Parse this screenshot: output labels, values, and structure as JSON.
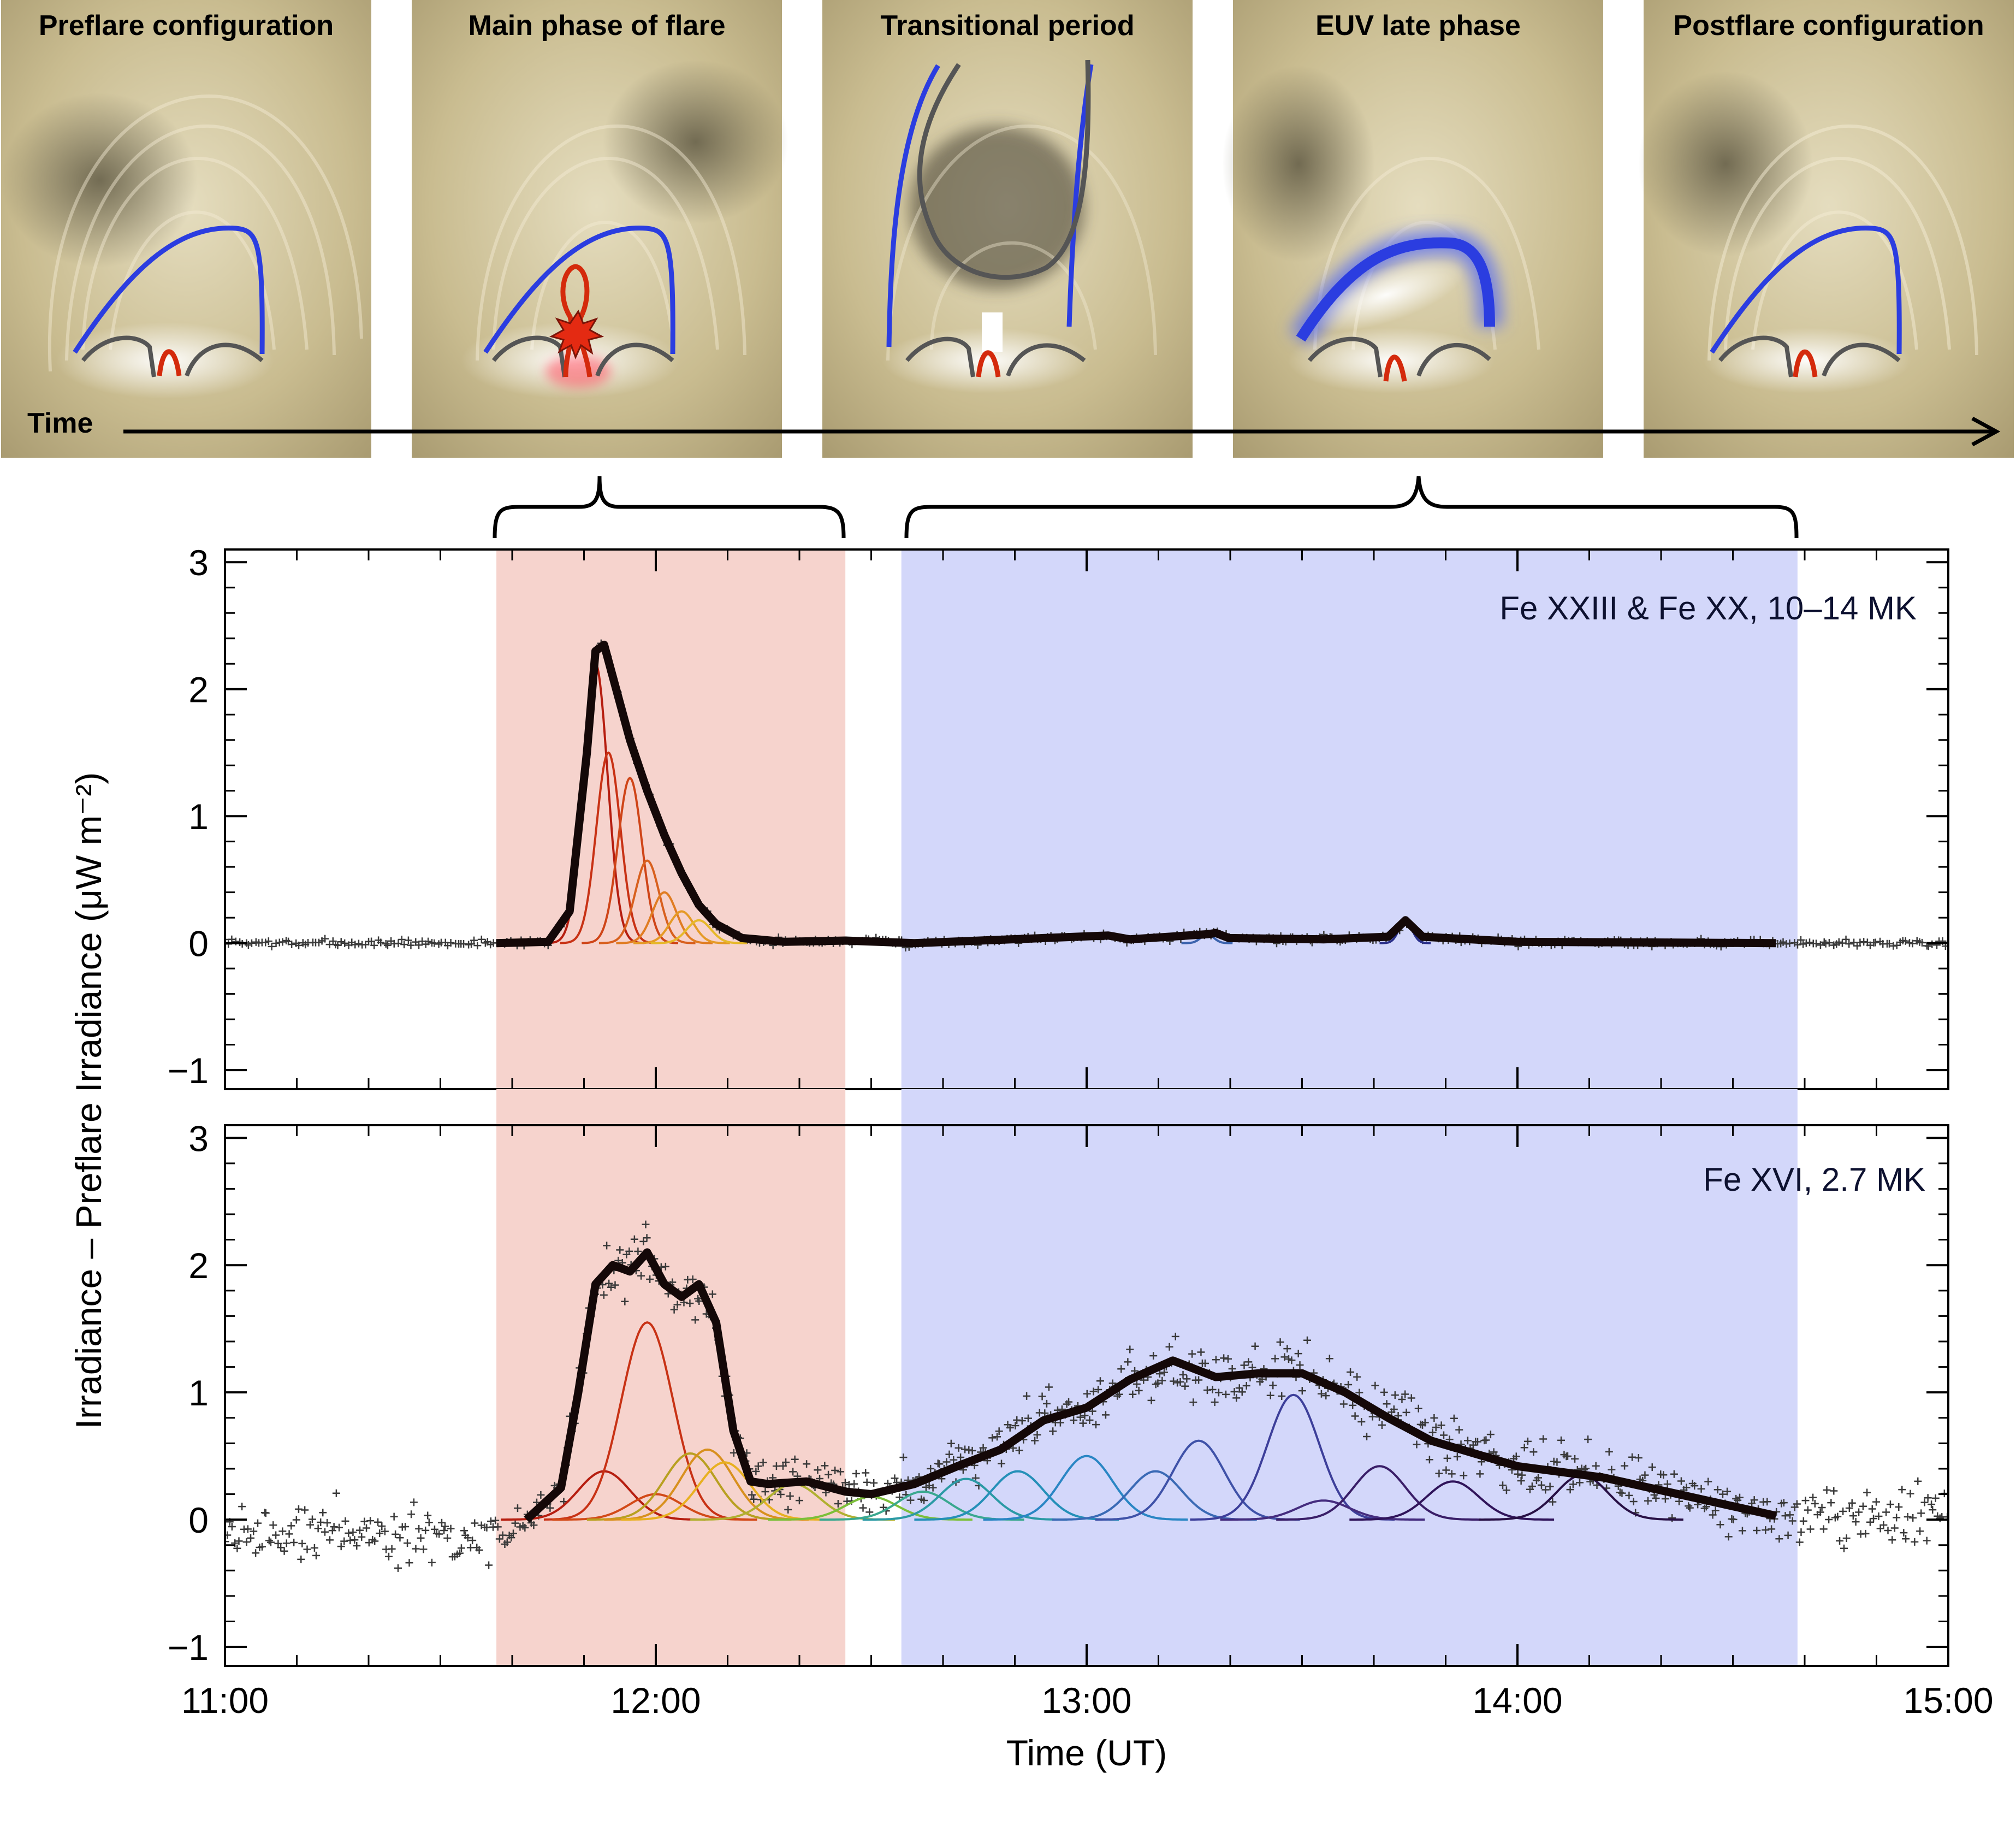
{
  "panels": [
    {
      "title": "Preflare configuration"
    },
    {
      "title": "Main phase of flare"
    },
    {
      "title": "Transitional period"
    },
    {
      "title": "EUV late phase"
    },
    {
      "title": "Postflare configuration"
    }
  ],
  "timeline_label": "Time",
  "colors": {
    "main_phase_shade": "#f6d3cd",
    "late_phase_shade": "#d3d7fa",
    "field_blue": "#2b3de0",
    "loop_red": "#d42a0c",
    "loop_gray": "#555555",
    "data_black": "#140808"
  },
  "chart_data": [
    {
      "type": "line",
      "ion_label": "Fe XXIII & Fe XX, 10–14 MK",
      "xlim": [
        11.0,
        15.0
      ],
      "ylim": [
        -1.15,
        3.1
      ],
      "yticks": [
        -1,
        0,
        1,
        2,
        3
      ],
      "shaded_regions": [
        {
          "phase": "main",
          "x_start": 11.63,
          "x_end": 12.44
        },
        {
          "phase": "late",
          "x_start": 12.57,
          "x_end": 14.65
        }
      ],
      "fit_x": [
        11.63,
        11.75,
        11.8,
        11.84,
        11.86,
        11.88,
        11.9,
        11.94,
        11.98,
        12.02,
        12.06,
        12.1,
        12.14,
        12.2,
        12.3,
        12.44,
        12.6,
        12.9,
        13.05,
        13.1,
        13.28,
        13.3,
        13.33,
        13.55,
        13.7,
        13.74,
        13.78,
        14.0,
        14.6
      ],
      "fit_y": [
        0.0,
        0.01,
        0.25,
        1.5,
        2.3,
        2.35,
        2.1,
        1.6,
        1.2,
        0.85,
        0.55,
        0.3,
        0.15,
        0.04,
        0.01,
        0.02,
        0.0,
        0.04,
        0.06,
        0.03,
        0.07,
        0.08,
        0.04,
        0.03,
        0.05,
        0.18,
        0.05,
        0.01,
        0.0
      ],
      "component_peaks": [
        {
          "peak_time": 11.86,
          "amplitude": 2.2,
          "color": "#b61e10"
        },
        {
          "peak_time": 11.89,
          "amplitude": 1.5,
          "color": "#c83215"
        },
        {
          "peak_time": 11.94,
          "amplitude": 1.3,
          "color": "#cf4518"
        },
        {
          "peak_time": 11.98,
          "amplitude": 0.65,
          "color": "#d8601e"
        },
        {
          "peak_time": 12.02,
          "amplitude": 0.4,
          "color": "#e07c22"
        },
        {
          "peak_time": 12.06,
          "amplitude": 0.25,
          "color": "#e59a26"
        },
        {
          "peak_time": 12.1,
          "amplitude": 0.18,
          "color": "#e6b82a"
        },
        {
          "peak_time": 12.4,
          "amplitude": 0.03,
          "color": "#a8c238"
        },
        {
          "peak_time": 13.28,
          "amplitude": 0.07,
          "color": "#3b63ad"
        },
        {
          "peak_time": 13.74,
          "amplitude": 0.18,
          "color": "#2a2f8a"
        }
      ]
    },
    {
      "type": "line",
      "ion_label": "Fe XVI, 2.7 MK",
      "xlim": [
        11.0,
        15.0
      ],
      "ylim": [
        -1.15,
        3.1
      ],
      "yticks": [
        -1,
        0,
        1,
        2,
        3
      ],
      "xticks": [
        11,
        12,
        13,
        14,
        15
      ],
      "xtick_labels": [
        "11:00",
        "12:00",
        "13:00",
        "14:00",
        "15:00"
      ],
      "xlabel": "Time (UT)",
      "fit_x": [
        11.7,
        11.78,
        11.82,
        11.86,
        11.9,
        11.94,
        11.98,
        12.02,
        12.06,
        12.1,
        12.14,
        12.18,
        12.22,
        12.26,
        12.35,
        12.44,
        12.5,
        12.6,
        12.7,
        12.8,
        12.9,
        13.0,
        13.1,
        13.2,
        13.3,
        13.4,
        13.5,
        13.6,
        13.7,
        13.8,
        14.0,
        14.2,
        14.4,
        14.6
      ],
      "fit_y": [
        0.0,
        0.25,
        1.0,
        1.85,
        2.0,
        1.95,
        2.1,
        1.85,
        1.75,
        1.85,
        1.55,
        0.7,
        0.3,
        0.28,
        0.3,
        0.22,
        0.2,
        0.28,
        0.42,
        0.55,
        0.78,
        0.88,
        1.1,
        1.25,
        1.12,
        1.15,
        1.15,
        1.0,
        0.8,
        0.62,
        0.42,
        0.33,
        0.18,
        0.03
      ],
      "component_peaks": [
        {
          "peak_time": 11.88,
          "amplitude": 0.38,
          "color": "#b61e10"
        },
        {
          "peak_time": 11.98,
          "amplitude": 1.55,
          "color": "#c83215"
        },
        {
          "peak_time": 12.0,
          "amplitude": 0.2,
          "color": "#d24a18"
        },
        {
          "peak_time": 12.08,
          "amplitude": 0.52,
          "color": "#b8a020"
        },
        {
          "peak_time": 12.12,
          "amplitude": 0.55,
          "color": "#d8901e"
        },
        {
          "peak_time": 12.16,
          "amplitude": 0.45,
          "color": "#e8b020"
        },
        {
          "peak_time": 12.32,
          "amplitude": 0.28,
          "color": "#b0b030"
        },
        {
          "peak_time": 12.5,
          "amplitude": 0.18,
          "color": "#7cbf3a"
        },
        {
          "peak_time": 12.62,
          "amplitude": 0.22,
          "color": "#3aa88f"
        },
        {
          "peak_time": 12.72,
          "amplitude": 0.32,
          "color": "#2b9aa5"
        },
        {
          "peak_time": 12.84,
          "amplitude": 0.38,
          "color": "#2590b8"
        },
        {
          "peak_time": 13.0,
          "amplitude": 0.5,
          "color": "#2a86c4"
        },
        {
          "peak_time": 13.16,
          "amplitude": 0.38,
          "color": "#3a6ab5"
        },
        {
          "peak_time": 13.26,
          "amplitude": 0.62,
          "color": "#3f52a8"
        },
        {
          "peak_time": 13.48,
          "amplitude": 0.98,
          "color": "#3d3f9a"
        },
        {
          "peak_time": 13.55,
          "amplitude": 0.15,
          "color": "#452c7e"
        },
        {
          "peak_time": 13.68,
          "amplitude": 0.42,
          "color": "#3a1e68"
        },
        {
          "peak_time": 13.85,
          "amplitude": 0.3,
          "color": "#30145a"
        },
        {
          "peak_time": 14.15,
          "amplitude": 0.35,
          "color": "#281045"
        }
      ]
    }
  ],
  "shared_ylabel": "Irradiance – Preflare Irradiance (μW m⁻²)"
}
